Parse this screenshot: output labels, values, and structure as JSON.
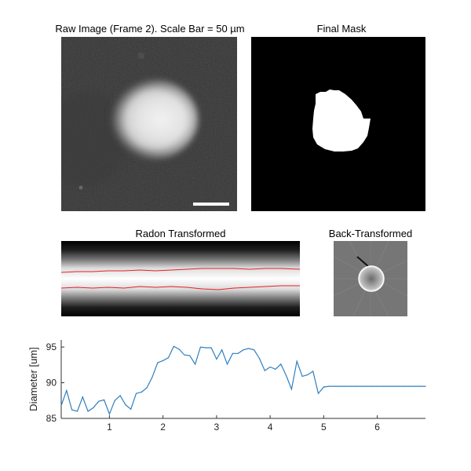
{
  "panels": {
    "raw": {
      "title": "Raw Image (Frame 2). Scale Bar = 50 µm"
    },
    "mask": {
      "title": "Final Mask"
    },
    "radon": {
      "title": "Radon Transformed"
    },
    "back": {
      "title": "Back-Transformed"
    }
  },
  "colors": {
    "line": "#2f7fbf",
    "radon_edge": "#e8202a",
    "axis": "#333333"
  },
  "chart_data": {
    "type": "line",
    "xlabel": "",
    "ylabel": "Diameter [um]",
    "xlim": [
      0.1,
      6.9
    ],
    "ylim": [
      85,
      96
    ],
    "xticks": [
      1,
      2,
      3,
      4,
      5,
      6
    ],
    "yticks": [
      85,
      90,
      95
    ],
    "series": [
      {
        "x": [
          0.1,
          0.2,
          0.3,
          0.4,
          0.5,
          0.6,
          0.7,
          0.8,
          0.9,
          1.0,
          1.1,
          1.2,
          1.3,
          1.4,
          1.5,
          1.6,
          1.7,
          1.8,
          1.9,
          2.0,
          2.1,
          2.2,
          2.3,
          2.4,
          2.5,
          2.6,
          2.7,
          2.8,
          2.9,
          3.0,
          3.1,
          3.2,
          3.3,
          3.4,
          3.5,
          3.6,
          3.7,
          3.8,
          3.9,
          4.0,
          4.1,
          4.2,
          4.3,
          4.4,
          4.5,
          4.6,
          4.7,
          4.8,
          4.9,
          5.0,
          5.1,
          5.2,
          5.3,
          5.4,
          5.5,
          5.6,
          5.7,
          5.8,
          5.9,
          6.0,
          6.1,
          6.2,
          6.3,
          6.4,
          6.5,
          6.6,
          6.7,
          6.8,
          6.9
        ],
        "values": [
          86.8,
          88.9,
          86.2,
          86.0,
          88.0,
          86.0,
          86.5,
          87.4,
          87.6,
          85.6,
          87.5,
          88.2,
          86.9,
          86.3,
          88.5,
          88.7,
          89.3,
          90.8,
          92.8,
          93.1,
          93.5,
          95.1,
          94.7,
          93.9,
          93.8,
          92.6,
          95.0,
          94.9,
          94.9,
          93.3,
          94.6,
          92.6,
          94.1,
          94.1,
          94.6,
          94.8,
          94.6,
          93.4,
          91.7,
          92.2,
          91.9,
          92.6,
          91.0,
          89.1,
          93.0,
          90.9,
          91.1,
          91.6,
          88.5,
          89.4,
          89.5,
          89.5,
          89.5,
          89.5,
          89.5,
          89.5,
          89.5,
          89.5,
          89.5,
          89.5,
          89.5,
          89.5,
          89.5,
          89.5,
          89.5,
          89.5,
          89.5,
          89.5,
          89.5
        ]
      }
    ]
  }
}
